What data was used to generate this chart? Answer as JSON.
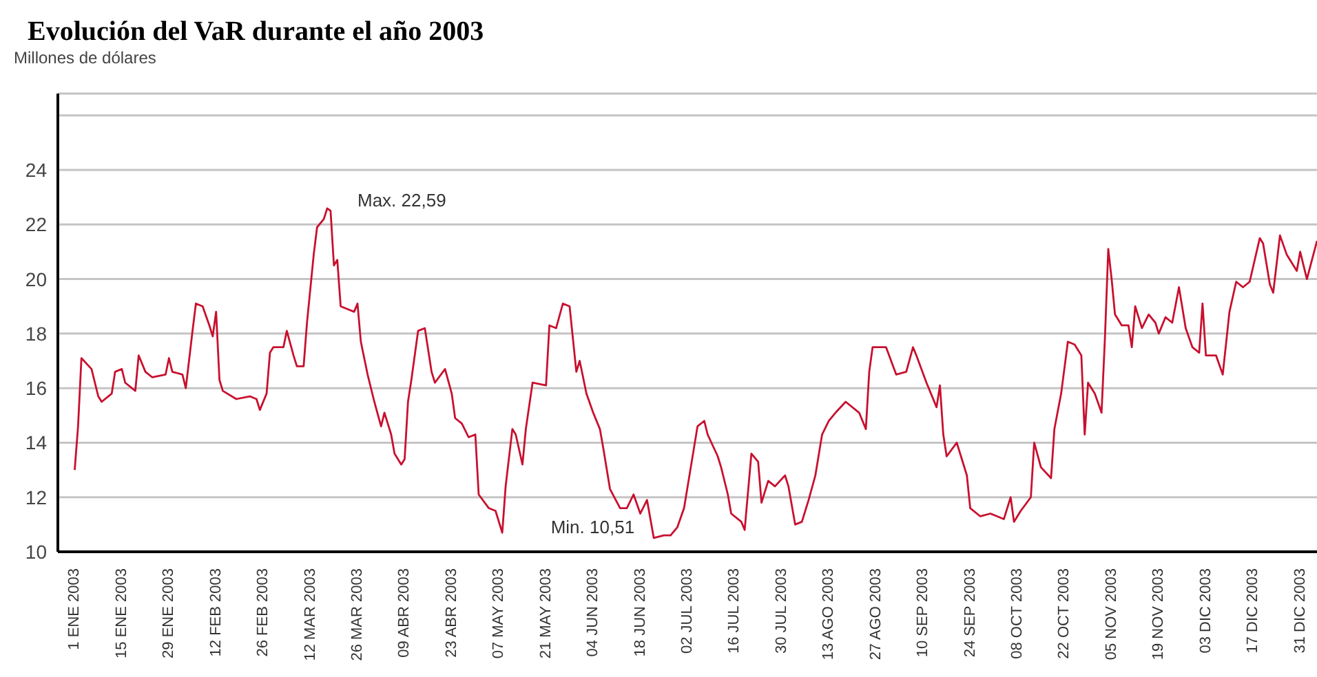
{
  "chart_data": {
    "type": "line",
    "title": "Evolución del VaR durante el año 2003",
    "ylabel": "Millones de dólares",
    "x": [
      "2003-01-01",
      "2003-01-02",
      "2003-01-03",
      "2003-01-06",
      "2003-01-08",
      "2003-01-09",
      "2003-01-12",
      "2003-01-13",
      "2003-01-15",
      "2003-01-16",
      "2003-01-19",
      "2003-01-20",
      "2003-01-22",
      "2003-01-24",
      "2003-01-28",
      "2003-01-29",
      "2003-01-30",
      "2003-02-02",
      "2003-02-03",
      "2003-02-05",
      "2003-02-06",
      "2003-02-08",
      "2003-02-10",
      "2003-02-11",
      "2003-02-12",
      "2003-02-13",
      "2003-02-14",
      "2003-02-18",
      "2003-02-22",
      "2003-02-24",
      "2003-02-25",
      "2003-02-27",
      "2003-02-28",
      "2003-03-01",
      "2003-03-04",
      "2003-03-05",
      "2003-03-07",
      "2003-03-08",
      "2003-03-10",
      "2003-03-11",
      "2003-03-13",
      "2003-03-14",
      "2003-03-16",
      "2003-03-17",
      "2003-03-18",
      "2003-03-19",
      "2003-03-20",
      "2003-03-21",
      "2003-03-25",
      "2003-03-26",
      "2003-03-27",
      "2003-03-29",
      "2003-03-31",
      "2003-04-02",
      "2003-04-03",
      "2003-04-05",
      "2003-04-06",
      "2003-04-08",
      "2003-04-09",
      "2003-04-10",
      "2003-04-11",
      "2003-04-13",
      "2003-04-15",
      "2003-04-17",
      "2003-04-18",
      "2003-04-21",
      "2003-04-23",
      "2003-04-24",
      "2003-04-26",
      "2003-04-28",
      "2003-04-30",
      "2003-05-01",
      "2003-05-04",
      "2003-05-06",
      "2003-05-08",
      "2003-05-09",
      "2003-05-11",
      "2003-05-12",
      "2003-05-14",
      "2003-05-15",
      "2003-05-17",
      "2003-05-21",
      "2003-05-22",
      "2003-05-24",
      "2003-05-26",
      "2003-05-28",
      "2003-05-30",
      "2003-05-31",
      "2003-06-02",
      "2003-06-04",
      "2003-06-06",
      "2003-06-07",
      "2003-06-09",
      "2003-06-12",
      "2003-06-14",
      "2003-06-16",
      "2003-06-18",
      "2003-06-20",
      "2003-06-22",
      "2003-06-25",
      "2003-06-27",
      "2003-06-29",
      "2003-07-01",
      "2003-07-03",
      "2003-07-05",
      "2003-07-07",
      "2003-07-08",
      "2003-07-11",
      "2003-07-12",
      "2003-07-14",
      "2003-07-15",
      "2003-07-18",
      "2003-07-19",
      "2003-07-21",
      "2003-07-23",
      "2003-07-24",
      "2003-07-26",
      "2003-07-28",
      "2003-07-31",
      "2003-08-01",
      "2003-08-03",
      "2003-08-05",
      "2003-08-07",
      "2003-08-09",
      "2003-08-11",
      "2003-08-13",
      "2003-08-15",
      "2003-08-18",
      "2003-08-22",
      "2003-08-24",
      "2003-08-25",
      "2003-08-26",
      "2003-08-30",
      "2003-09-02",
      "2003-09-05",
      "2003-09-07",
      "2003-09-08",
      "2003-09-11",
      "2003-09-14",
      "2003-09-15",
      "2003-09-16",
      "2003-09-17",
      "2003-09-20",
      "2003-09-21",
      "2003-09-23",
      "2003-09-24",
      "2003-09-27",
      "2003-09-30",
      "2003-10-04",
      "2003-10-06",
      "2003-10-07",
      "2003-10-09",
      "2003-10-12",
      "2003-10-13",
      "2003-10-15",
      "2003-10-18",
      "2003-10-19",
      "2003-10-21",
      "2003-10-23",
      "2003-10-25",
      "2003-10-27",
      "2003-10-28",
      "2003-10-29",
      "2003-10-31",
      "2003-11-02",
      "2003-11-03",
      "2003-11-04",
      "2003-11-05",
      "2003-11-06",
      "2003-11-08",
      "2003-11-10",
      "2003-11-11",
      "2003-11-12",
      "2003-11-14",
      "2003-11-16",
      "2003-11-18",
      "2003-11-19",
      "2003-11-21",
      "2003-11-23",
      "2003-11-25",
      "2003-11-27",
      "2003-11-29",
      "2003-12-01",
      "2003-12-02",
      "2003-12-03",
      "2003-12-06",
      "2003-12-08",
      "2003-12-10",
      "2003-12-12",
      "2003-12-14",
      "2003-12-16",
      "2003-12-19",
      "2003-12-20",
      "2003-12-22",
      "2003-12-23",
      "2003-12-25",
      "2003-12-27",
      "2003-12-30",
      "2003-12-31",
      "2004-01-02",
      "2004-01-05"
    ],
    "series": [
      {
        "color": "#c8102e",
        "values": [
          13.0,
          14.6,
          17.1,
          16.7,
          15.7,
          15.5,
          15.8,
          16.6,
          16.7,
          16.2,
          15.9,
          17.2,
          16.6,
          16.4,
          16.5,
          17.1,
          16.6,
          16.5,
          16.0,
          18.1,
          19.1,
          19.0,
          18.3,
          17.9,
          18.8,
          16.3,
          15.9,
          15.6,
          15.7,
          15.6,
          15.2,
          15.8,
          17.3,
          17.5,
          17.5,
          18.1,
          17.2,
          16.8,
          16.8,
          18.4,
          20.9,
          21.9,
          22.2,
          22.59,
          22.5,
          20.5,
          20.7,
          19.0,
          18.8,
          19.1,
          17.7,
          16.5,
          15.5,
          14.6,
          15.1,
          14.3,
          13.6,
          13.2,
          13.4,
          15.5,
          16.3,
          18.1,
          18.2,
          16.6,
          16.2,
          16.7,
          15.8,
          14.9,
          14.7,
          14.2,
          14.3,
          12.1,
          11.6,
          11.5,
          10.7,
          12.4,
          14.5,
          14.3,
          13.2,
          14.5,
          16.2,
          16.1,
          18.3,
          18.2,
          19.1,
          19.0,
          16.6,
          17.0,
          15.8,
          15.1,
          14.5,
          13.8,
          12.3,
          11.6,
          11.6,
          12.1,
          11.4,
          11.9,
          10.51,
          10.6,
          10.6,
          10.9,
          11.6,
          13.1,
          14.6,
          14.8,
          14.3,
          13.5,
          13.1,
          12.1,
          11.4,
          11.1,
          10.8,
          13.6,
          13.3,
          11.8,
          12.6,
          12.4,
          12.8,
          12.4,
          11.0,
          11.1,
          11.9,
          12.8,
          14.3,
          14.8,
          15.1,
          15.5,
          15.1,
          14.5,
          16.6,
          17.5,
          17.5,
          16.5,
          16.6,
          17.5,
          17.2,
          16.2,
          15.3,
          16.1,
          14.3,
          13.5,
          14.0,
          13.6,
          12.8,
          11.6,
          11.3,
          11.4,
          11.2,
          12.0,
          11.1,
          11.5,
          12.0,
          14.0,
          13.1,
          12.7,
          14.5,
          15.8,
          17.7,
          17.6,
          17.2,
          14.3,
          16.2,
          15.8,
          15.1,
          17.8,
          21.1,
          20.0,
          18.7,
          18.3,
          18.3,
          17.5,
          19.0,
          18.2,
          18.7,
          18.4,
          18.0,
          18.6,
          18.4,
          19.7,
          18.2,
          17.5,
          17.3,
          19.1,
          17.2,
          17.2,
          16.5,
          18.8,
          19.9,
          19.7,
          19.9,
          21.5,
          21.3,
          19.8,
          19.5,
          21.6,
          20.9,
          20.3,
          21.0,
          20.0,
          21.4
        ]
      }
    ],
    "xlim": [
      "2002-12-27",
      "2004-01-05"
    ],
    "xticks": [
      {
        "value": "2003-01-01",
        "label": "1 ENE 2003"
      },
      {
        "value": "2003-01-15",
        "label": "15 ENE 2003"
      },
      {
        "value": "2003-01-29",
        "label": "29 ENE 2003"
      },
      {
        "value": "2003-02-12",
        "label": "12 FEB 2003"
      },
      {
        "value": "2003-02-26",
        "label": "26 FEB 2003"
      },
      {
        "value": "2003-03-12",
        "label": "12 MAR 2003"
      },
      {
        "value": "2003-03-26",
        "label": "26 MAR 2003"
      },
      {
        "value": "2003-04-09",
        "label": "09 ABR 2003"
      },
      {
        "value": "2003-04-23",
        "label": "23 ABR 2003"
      },
      {
        "value": "2003-05-07",
        "label": "07 MAY 2003"
      },
      {
        "value": "2003-05-21",
        "label": "21 MAY 2003"
      },
      {
        "value": "2003-06-04",
        "label": "04 JUN 2003"
      },
      {
        "value": "2003-06-18",
        "label": "18 JUN 2003"
      },
      {
        "value": "2003-07-02",
        "label": "02 JUL 2003"
      },
      {
        "value": "2003-07-16",
        "label": "16 JUL 2003"
      },
      {
        "value": "2003-07-30",
        "label": "30 JUL 2003"
      },
      {
        "value": "2003-08-13",
        "label": "13 AGO 2003"
      },
      {
        "value": "2003-08-27",
        "label": "27 AGO 2003"
      },
      {
        "value": "2003-09-10",
        "label": "10 SEP 2003"
      },
      {
        "value": "2003-09-24",
        "label": "24 SEP 2003"
      },
      {
        "value": "2003-10-08",
        "label": "08 OCT 2003"
      },
      {
        "value": "2003-10-22",
        "label": "22 OCT 2003"
      },
      {
        "value": "2003-11-05",
        "label": "05 NOV 2003"
      },
      {
        "value": "2003-11-19",
        "label": "19 NOV 2003"
      },
      {
        "value": "2003-12-03",
        "label": "03 DIC 2003"
      },
      {
        "value": "2003-12-17",
        "label": "17 DIC 2003"
      },
      {
        "value": "2003-12-31",
        "label": "31 DIC 2003"
      }
    ],
    "ylim": [
      10,
      26.8
    ],
    "yticks": [
      10,
      12,
      14,
      16,
      18,
      20,
      22,
      24,
      {
        "value": 26,
        "label": null
      }
    ],
    "grid": "y",
    "legend": false,
    "marker": "none",
    "line_style": "solid",
    "annotations": [
      {
        "text": "Max. 22,59",
        "x": "2003-03-17",
        "y": 22.59
      },
      {
        "text": "Min. 10,51",
        "x": "2003-06-22",
        "y": 10.51
      }
    ]
  }
}
